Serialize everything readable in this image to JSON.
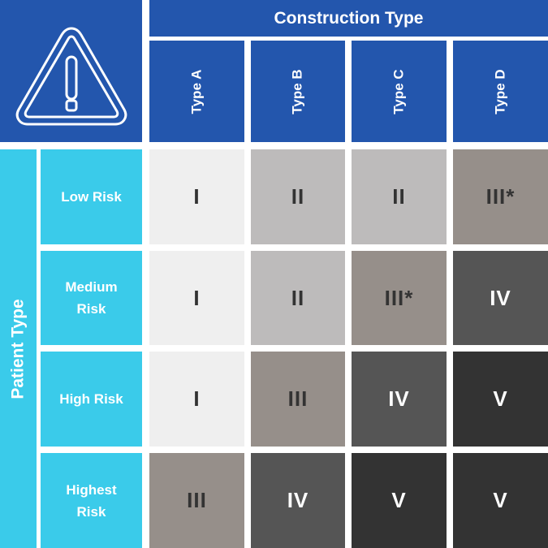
{
  "header": {
    "title": "Construction Type",
    "columns": [
      "Type A",
      "Type B",
      "Type C",
      "Type D"
    ]
  },
  "side": {
    "title": "Patient Type",
    "rows": [
      "Low Risk",
      "Medium Risk",
      "High Risk",
      "Highest Risk"
    ]
  },
  "icon": "warning-triangle-icon",
  "colors": {
    "header": "#2356ad",
    "side": "#3acbea",
    "I": "#efefef",
    "II": "#bdbbbb",
    "III": "#968f8a",
    "IV": "#555555",
    "V": "#333333"
  },
  "matrix": [
    [
      "I",
      "II",
      "II",
      "III*"
    ],
    [
      "I",
      "II",
      "III*",
      "IV"
    ],
    [
      "I",
      "III",
      "IV",
      "V"
    ],
    [
      "III",
      "IV",
      "V",
      "V"
    ]
  ]
}
